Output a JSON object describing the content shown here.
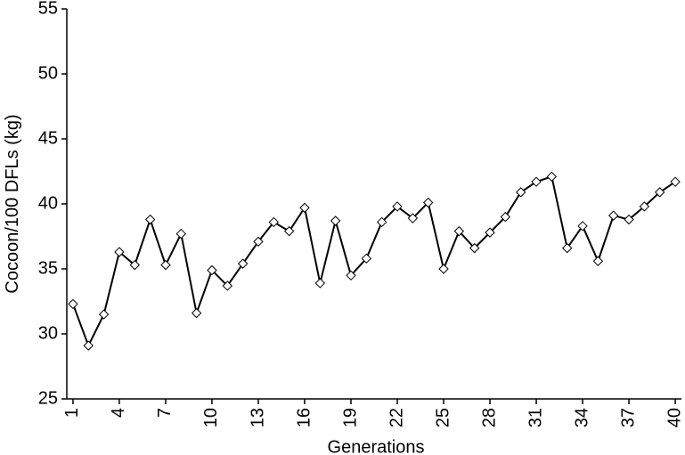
{
  "chart_data": {
    "type": "line",
    "y_label": "Cocoon/100 DFLs (kg)",
    "x_label": "Generations",
    "x": [
      1,
      2,
      3,
      4,
      5,
      6,
      7,
      8,
      9,
      10,
      11,
      12,
      13,
      14,
      15,
      16,
      17,
      18,
      19,
      20,
      21,
      22,
      23,
      24,
      25,
      26,
      27,
      28,
      29,
      30,
      31,
      32,
      33,
      34,
      35,
      36,
      37,
      38,
      39,
      40
    ],
    "series": [
      {
        "color": "#000000",
        "values": [
          32.3,
          29.1,
          31.5,
          36.3,
          35.3,
          38.8,
          35.3,
          37.7,
          31.6,
          34.9,
          33.7,
          35.4,
          37.1,
          38.6,
          37.9,
          39.7,
          33.9,
          38.7,
          34.5,
          35.8,
          38.6,
          39.8,
          38.9,
          40.1,
          35.0,
          37.9,
          36.6,
          37.8,
          39.0,
          40.9,
          41.7,
          42.1,
          36.6,
          38.3,
          35.6,
          39.1,
          38.8,
          39.8,
          40.9,
          41.7
        ]
      }
    ],
    "xlim": [
      0.6,
      40.4
    ],
    "xticks": [
      1,
      4,
      7,
      10,
      13,
      16,
      19,
      22,
      25,
      28,
      31,
      34,
      37,
      40
    ],
    "ylim": [
      25,
      55
    ],
    "yticks": [
      25,
      30,
      35,
      40,
      45,
      50,
      55
    ]
  }
}
